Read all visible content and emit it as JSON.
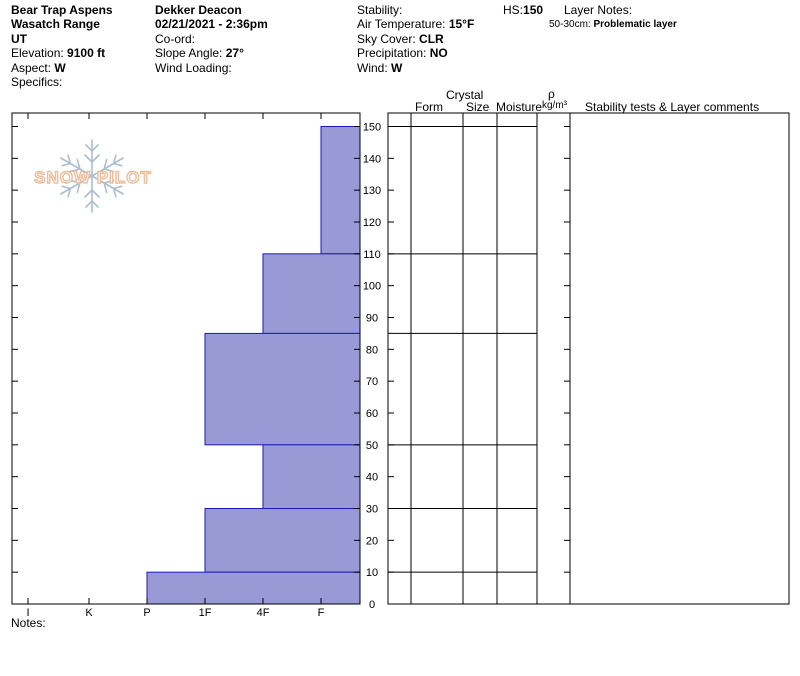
{
  "header": {
    "location": "Bear Trap Aspens",
    "range": "Wasatch Range",
    "state": "UT",
    "elevation_label": "Elevation:",
    "elevation_value": "9100 ft",
    "aspect_label": "Aspect:",
    "aspect_value": "W",
    "specifics_label": "Specifics:",
    "observer": "Dekker Deacon",
    "datetime": "02/21/2021 - 2:36pm",
    "coord_label": "Co-ord:",
    "slope_label": "Slope Angle:",
    "slope_value": "27°",
    "wind_loading_label": "Wind Loading:",
    "stability_label": "Stability:",
    "air_temp_label": "Air Temperature:",
    "air_temp_value": "15°F",
    "sky_label": "Sky Cover:",
    "sky_value": "CLR",
    "precip_label": "Precipitation:",
    "precip_value": "NO",
    "wind_label": "Wind:",
    "wind_value": "W",
    "hs_label": "HS:",
    "hs_value": "150",
    "layer_notes_label": "Layer Notes:",
    "layer_note_range": "50-30cm:",
    "layer_note_text": "Problematic layer"
  },
  "columns": {
    "crystal": "Crystal",
    "form": "Form",
    "size": "Size",
    "moisture": "Moisture",
    "rho": "ρ",
    "density_unit": "kg/m³",
    "comments": "Stability tests & Layer comments"
  },
  "footer": {
    "notes_label": "Notes:"
  },
  "logo": {
    "text": "SNOW PILOT"
  },
  "colors": {
    "layer_fill": "#9999D6",
    "layer_edge": "#1A1AB8"
  },
  "chart_data": {
    "type": "bar",
    "orientation": "horizontal",
    "title": "",
    "xlabel": "",
    "ylabel": "",
    "x_categories": [
      "I",
      "K",
      "P",
      "1F",
      "4F",
      "F"
    ],
    "y_unit": "cm",
    "ylim": [
      0,
      150
    ],
    "y_ticks": [
      0,
      10,
      20,
      30,
      40,
      50,
      60,
      70,
      80,
      90,
      100,
      110,
      120,
      130,
      140,
      150
    ],
    "layers": [
      {
        "top": 150,
        "bottom": 110,
        "hardness": "F"
      },
      {
        "top": 110,
        "bottom": 85,
        "hardness": "4F"
      },
      {
        "top": 85,
        "bottom": 50,
        "hardness": "1F"
      },
      {
        "top": 50,
        "bottom": 30,
        "hardness": "4F"
      },
      {
        "top": 30,
        "bottom": 10,
        "hardness": "1F"
      },
      {
        "top": 10,
        "bottom": 0,
        "hardness": "P"
      }
    ]
  }
}
